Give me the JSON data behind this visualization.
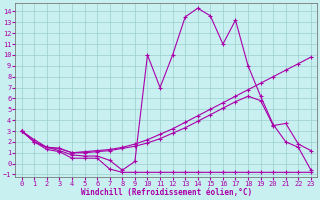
{
  "xlabel": "Windchill (Refroidissement éolien,°C)",
  "background_color": "#c8f0f0",
  "line_color": "#aa00aa",
  "xlim": [
    -0.5,
    23.5
  ],
  "ylim": [
    -1.2,
    14.8
  ],
  "xticks": [
    0,
    1,
    2,
    3,
    4,
    5,
    6,
    7,
    8,
    9,
    10,
    11,
    12,
    13,
    14,
    15,
    16,
    17,
    18,
    19,
    20,
    21,
    22,
    23
  ],
  "yticks": [
    -1,
    0,
    1,
    2,
    3,
    4,
    5,
    6,
    7,
    8,
    9,
    10,
    11,
    12,
    13,
    14
  ],
  "series1_x": [
    0,
    1,
    2,
    3,
    4,
    5,
    6,
    7,
    8,
    9,
    10,
    11,
    12,
    13,
    14,
    15,
    16,
    17,
    18,
    19,
    20,
    21,
    22,
    23
  ],
  "series1_y": [
    3.0,
    2.2,
    1.5,
    1.4,
    1.0,
    1.1,
    1.2,
    1.3,
    1.5,
    1.8,
    2.2,
    2.7,
    3.2,
    3.8,
    4.4,
    5.0,
    5.6,
    6.2,
    6.8,
    7.4,
    8.0,
    8.6,
    9.2,
    9.8
  ],
  "series2_x": [
    0,
    1,
    2,
    3,
    4,
    5,
    6,
    7,
    8,
    9,
    10,
    11,
    12,
    13,
    14,
    15,
    16,
    17,
    18,
    19,
    20,
    21,
    22,
    23
  ],
  "series2_y": [
    3.0,
    2.0,
    1.5,
    1.4,
    1.0,
    1.0,
    1.1,
    1.2,
    1.4,
    1.6,
    1.9,
    2.3,
    2.8,
    3.3,
    3.9,
    4.5,
    5.1,
    5.7,
    6.2,
    5.8,
    3.5,
    3.7,
    1.8,
    1.2
  ],
  "series3_x": [
    0,
    1,
    2,
    3,
    4,
    5,
    6,
    7,
    8,
    9,
    10,
    11,
    12,
    13,
    14,
    15,
    16,
    17,
    18,
    19,
    20,
    21,
    22,
    23
  ],
  "series3_y": [
    3.0,
    2.0,
    1.5,
    1.2,
    0.8,
    0.7,
    0.7,
    0.3,
    -0.6,
    0.2,
    10.0,
    7.0,
    10.0,
    13.5,
    14.3,
    13.6,
    11.0,
    13.2,
    9.0,
    6.2,
    3.6,
    2.0,
    1.5,
    -0.6
  ],
  "series4_x": [
    0,
    1,
    2,
    3,
    4,
    5,
    6,
    7,
    8,
    9,
    10,
    11,
    12,
    13,
    14,
    15,
    16,
    17,
    18,
    19,
    20,
    21,
    22,
    23
  ],
  "series4_y": [
    3.0,
    2.0,
    1.3,
    1.1,
    0.5,
    0.5,
    0.5,
    -0.5,
    -0.8,
    -0.8,
    -0.8,
    -0.8,
    -0.8,
    -0.8,
    -0.8,
    -0.8,
    -0.8,
    -0.8,
    -0.8,
    -0.8,
    -0.8,
    -0.8,
    -0.8,
    -0.8
  ]
}
